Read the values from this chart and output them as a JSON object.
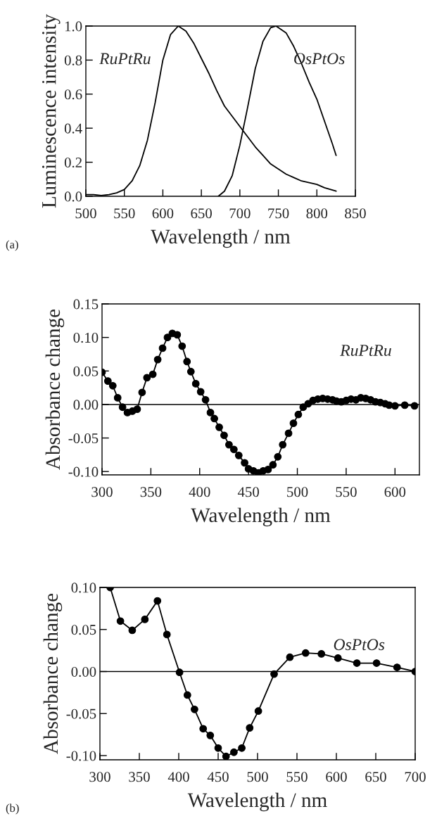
{
  "chart_data": [
    {
      "type": "line",
      "xlabel": "Wavelength / nm",
      "ylabel": "Luminescence intensity",
      "annotations": [
        "(a)"
      ],
      "xlim": [
        500,
        850
      ],
      "ylim": [
        0,
        1.0
      ],
      "xticks": [
        500,
        550,
        600,
        650,
        700,
        750,
        800,
        850
      ],
      "yticks": [
        {
          "value": 0,
          "label": "0.0"
        },
        0.2,
        0.4,
        0.6,
        0.8,
        {
          "value": 1.0,
          "label": "1.0"
        }
      ],
      "grid": false,
      "legend": false,
      "marker": "none",
      "line_style": "solid",
      "series": [
        {
          "name": "RuPtRu",
          "color": "#000000",
          "x": [
            500,
            510,
            520,
            530,
            540,
            550,
            560,
            570,
            580,
            590,
            600,
            610,
            620,
            630,
            640,
            650,
            660,
            670,
            680,
            690,
            700,
            710,
            720,
            730,
            740,
            750,
            760,
            770,
            780,
            790,
            800,
            810,
            825
          ],
          "values": [
            0.01,
            0.01,
            0.005,
            0.01,
            0.02,
            0.04,
            0.09,
            0.18,
            0.33,
            0.55,
            0.8,
            0.95,
            1.0,
            0.97,
            0.9,
            0.81,
            0.72,
            0.62,
            0.53,
            0.47,
            0.41,
            0.35,
            0.29,
            0.24,
            0.19,
            0.16,
            0.13,
            0.11,
            0.09,
            0.08,
            0.07,
            0.05,
            0.03
          ]
        },
        {
          "name": "OsPtOs",
          "color": "#000000",
          "x": [
            672,
            680,
            690,
            700,
            710,
            720,
            730,
            740,
            747,
            760,
            770,
            780,
            790,
            800,
            810,
            820,
            825
          ],
          "values": [
            0.0,
            0.03,
            0.12,
            0.3,
            0.52,
            0.75,
            0.91,
            0.99,
            1.0,
            0.96,
            0.88,
            0.78,
            0.67,
            0.57,
            0.44,
            0.31,
            0.24
          ]
        }
      ]
    },
    {
      "type": "line",
      "xlabel": "Wavelength / nm",
      "ylabel": "Absorbance change",
      "xlim": [
        300,
        625
      ],
      "ylim": [
        -0.105,
        0.15
      ],
      "xticks": [
        300,
        350,
        400,
        450,
        500,
        550,
        600
      ],
      "yticks": [
        {
          "value": -0.1,
          "label": "-0.10"
        },
        {
          "value": -0.05,
          "label": "-0.05"
        },
        {
          "value": 0,
          "label": "0.00"
        },
        {
          "value": 0.05,
          "label": "0.05"
        },
        {
          "value": 0.1,
          "label": "0.10"
        },
        {
          "value": 0.15,
          "label": "0.15"
        }
      ],
      "grid": false,
      "legend": false,
      "marker": "circle",
      "line_style": "solid",
      "ref_lines": [
        {
          "axis": "y",
          "value": 0,
          "color": "#000000"
        }
      ],
      "series": [
        {
          "name": "RuPtRu",
          "color": "#000000",
          "x": [
            300,
            306,
            311,
            316,
            321,
            326,
            331,
            336,
            341,
            346,
            352,
            357,
            362,
            367,
            372,
            377,
            382,
            387,
            391,
            396,
            401,
            406,
            411,
            415,
            420,
            425,
            430,
            435,
            440,
            446,
            450,
            455,
            460,
            465,
            470,
            475,
            480,
            485,
            491,
            496,
            501,
            506,
            511,
            516,
            521,
            526,
            531,
            536,
            540,
            545,
            550,
            555,
            560,
            565,
            570,
            575,
            580,
            585,
            590,
            594,
            600,
            610,
            620
          ],
          "values": [
            0.048,
            0.035,
            0.028,
            0.01,
            -0.004,
            -0.012,
            -0.01,
            -0.007,
            0.018,
            0.04,
            0.045,
            0.067,
            0.084,
            0.1,
            0.106,
            0.104,
            0.087,
            0.064,
            0.049,
            0.031,
            0.019,
            0.007,
            -0.012,
            -0.021,
            -0.034,
            -0.046,
            -0.06,
            -0.067,
            -0.076,
            -0.087,
            -0.096,
            -0.099,
            -0.102,
            -0.099,
            -0.097,
            -0.09,
            -0.078,
            -0.06,
            -0.043,
            -0.028,
            -0.015,
            -0.004,
            0.001,
            0.006,
            0.008,
            0.009,
            0.008,
            0.007,
            0.005,
            0.004,
            0.006,
            0.008,
            0.007,
            0.01,
            0.009,
            0.007,
            0.004,
            0.003,
            0.001,
            -0.001,
            -0.002,
            -0.001,
            -0.002
          ]
        }
      ]
    },
    {
      "type": "line",
      "xlabel": "Wavelength / nm",
      "ylabel": "Absorbance change",
      "annotations": [
        "(b)"
      ],
      "xlim": [
        300,
        700
      ],
      "ylim": [
        -0.105,
        0.1
      ],
      "xticks": [
        300,
        350,
        400,
        450,
        500,
        550,
        600,
        650,
        700
      ],
      "yticks": [
        {
          "value": -0.1,
          "label": "-0.10"
        },
        {
          "value": -0.05,
          "label": "-0.05"
        },
        {
          "value": 0,
          "label": "0.00"
        },
        {
          "value": 0.05,
          "label": "0.05"
        },
        {
          "value": 0.1,
          "label": "0.10"
        }
      ],
      "grid": false,
      "legend": false,
      "marker": "circle",
      "line_style": "solid",
      "ref_lines": [
        {
          "axis": "y",
          "value": 0,
          "color": "#000000"
        }
      ],
      "series": [
        {
          "name": "OsPtOs",
          "color": "#000000",
          "x": [
            313,
            326,
            341,
            357,
            373,
            385,
            401,
            411,
            420,
            431,
            440,
            450,
            460,
            470,
            480,
            490,
            501,
            521,
            541,
            561,
            581,
            602,
            626,
            651,
            677,
            700
          ],
          "values": [
            0.1,
            0.06,
            0.049,
            0.062,
            0.084,
            0.044,
            -0.001,
            -0.028,
            -0.045,
            -0.068,
            -0.076,
            -0.091,
            -0.101,
            -0.096,
            -0.091,
            -0.067,
            -0.047,
            -0.003,
            0.017,
            0.022,
            0.021,
            0.016,
            0.01,
            0.01,
            0.005,
            0.0
          ]
        }
      ]
    }
  ]
}
